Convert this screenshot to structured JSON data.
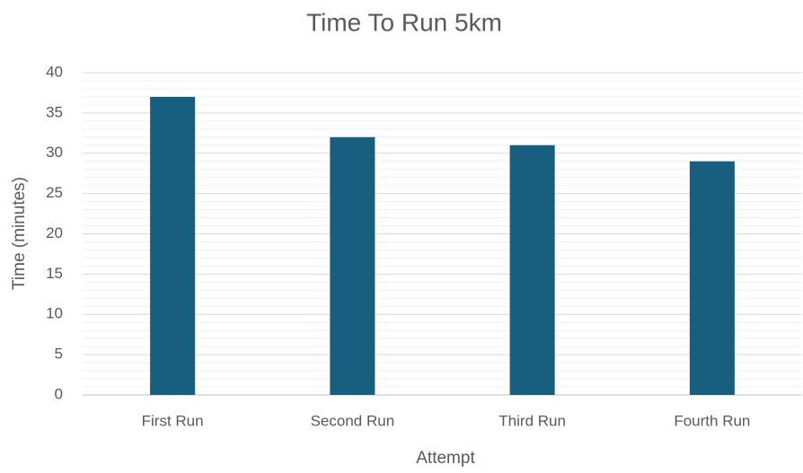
{
  "chart_data": {
    "type": "bar",
    "title": "Time To Run 5km",
    "x_label": "Attempt",
    "y_label": "Time (minutes)",
    "categories": [
      "First Run",
      "Second Run",
      "Third Run",
      "Fourth Run"
    ],
    "values": [
      37,
      32,
      31,
      29
    ],
    "color": "#185f7f",
    "ylim": [
      0,
      40
    ],
    "yticks": [
      0,
      5,
      10,
      15,
      20,
      25,
      30,
      35,
      40
    ],
    "grid": true,
    "minor_grid": true
  }
}
